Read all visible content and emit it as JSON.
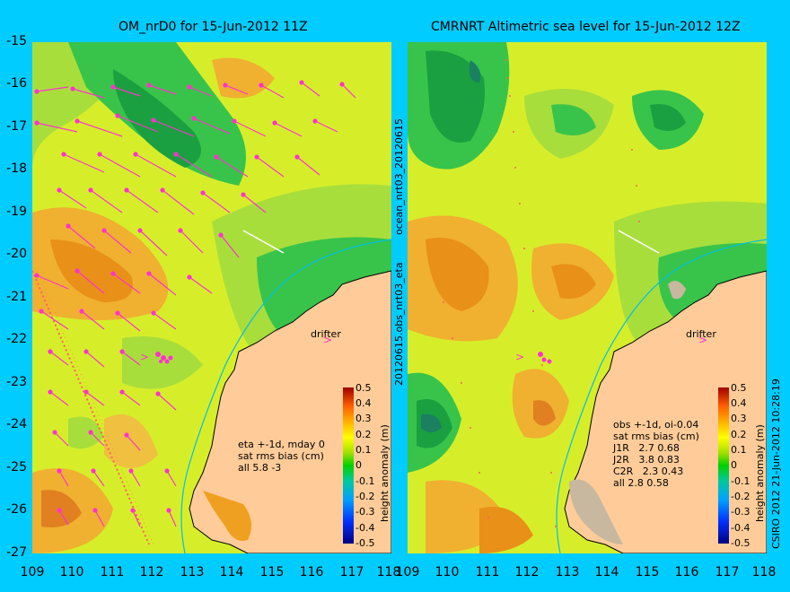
{
  "left_panel": {
    "title": "OM_nrD0 for 15-Jun-2012 11Z",
    "side_label_top": "ocean_nrt03_20120615",
    "side_label_bottom": "20120615.obs_nrt03_eta",
    "annotation_lines": [
      "eta +-1d, mday 0",
      "sat rms bias (cm)",
      "all 5.8 -3"
    ],
    "drifter_label": "drifter"
  },
  "right_panel": {
    "title": "CMRNRT Altimetric sea level  for 15-Jun-2012 12Z",
    "side_label": "CSIRO 2012   21-Jun-2012 10:28:19",
    "annotation_lines": [
      "obs +-1d, oi-0.04",
      "sat rms bias (cm)",
      "J1R   2.7 0.68",
      "J2R   3.8 0.83",
      "C2R   2.3 0.43",
      "all 2.8 0.58"
    ],
    "drifter_label": "drifter"
  },
  "y_axis_ticks": [
    "-15",
    "-16",
    "-17",
    "-18",
    "-19",
    "-20",
    "-21",
    "-22",
    "-23",
    "-24",
    "-25",
    "-26",
    "-27"
  ],
  "x_axis_ticks_left": [
    "109",
    "110",
    "111",
    "112",
    "113",
    "114",
    "115",
    "116",
    "117",
    "118"
  ],
  "x_axis_ticks_right": [
    "109",
    "110",
    "111",
    "112",
    "113",
    "114",
    "115",
    "116",
    "117",
    "118"
  ],
  "colorbar": {
    "title": "height anomaly (m)",
    "ticks": [
      "0.5",
      "0.4",
      "0.3",
      "0.2",
      "0.1",
      "0",
      "-0.1",
      "-0.2",
      "-0.3",
      "-0.4",
      "-0.5"
    ]
  },
  "colors": {
    "background": "#00ccff",
    "land": "#ffcc99",
    "vectors": "#ff33cc"
  }
}
